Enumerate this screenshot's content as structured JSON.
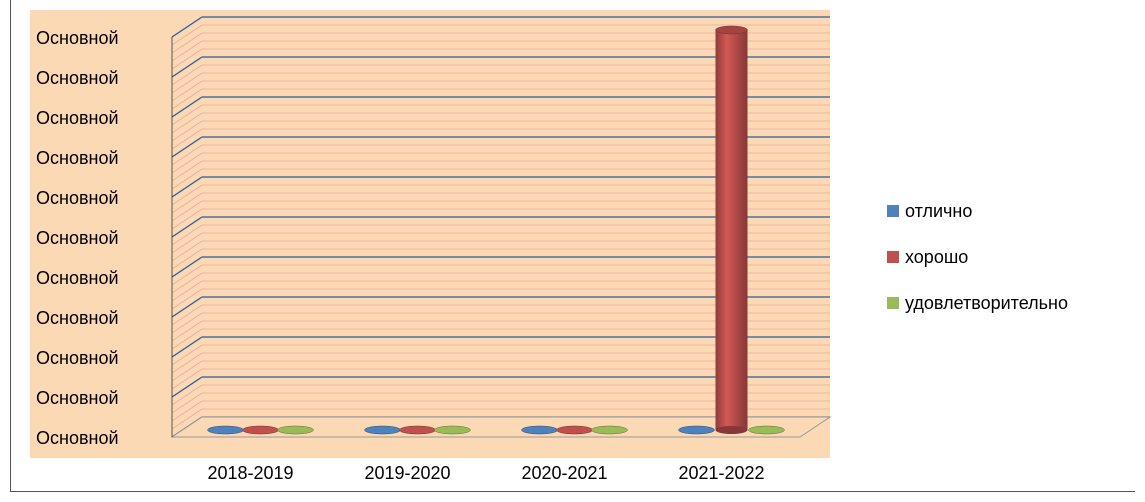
{
  "chart_data": {
    "type": "bar",
    "title": "",
    "xlabel": "",
    "ylabel": "",
    "categories": [
      "2018-2019",
      "2019-2020",
      "2020-2021",
      "2021-2022"
    ],
    "ytick_labels": [
      "Основной",
      "Основной",
      "Основной",
      "Основной",
      "Основной",
      "Основной",
      "Основной",
      "Основной",
      "Основной",
      "Основной",
      "Основной"
    ],
    "ylim": [
      0,
      10
    ],
    "grid": true,
    "legend_position": "right",
    "plot_background": "#FBD9B5",
    "series": [
      {
        "name": "отлично",
        "color": "#4F81BD",
        "values": [
          0,
          0,
          0,
          0
        ]
      },
      {
        "name": "хорошо",
        "color": "#C0504D",
        "values": [
          0,
          0,
          0,
          10
        ]
      },
      {
        "name": "удовлетворительно",
        "color": "#9BBB59",
        "values": [
          0,
          0,
          0,
          0
        ]
      }
    ]
  }
}
